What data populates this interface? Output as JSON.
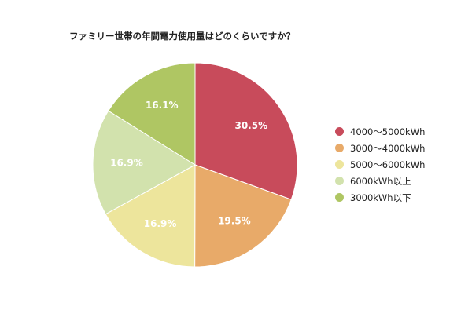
{
  "chart_data": {
    "type": "pie",
    "title": "ファミリー世帯の年間電力使用量はどのくらいですか？",
    "categories": [
      "4000〜5000kWh",
      "3000〜4000kWh",
      "5000〜6000kWh",
      "6000kWh以上",
      "3000kWh以下"
    ],
    "values": [
      30.5,
      19.5,
      16.9,
      16.9,
      16.1
    ],
    "value_labels": [
      "30.5%",
      "19.5%",
      "16.9%",
      "16.9%",
      "16.1%"
    ],
    "colors": [
      "#c84b5b",
      "#e8aa69",
      "#ede59c",
      "#d2e2ad",
      "#afc663"
    ],
    "legend_position": "right",
    "start_angle": "top, clockwise"
  }
}
